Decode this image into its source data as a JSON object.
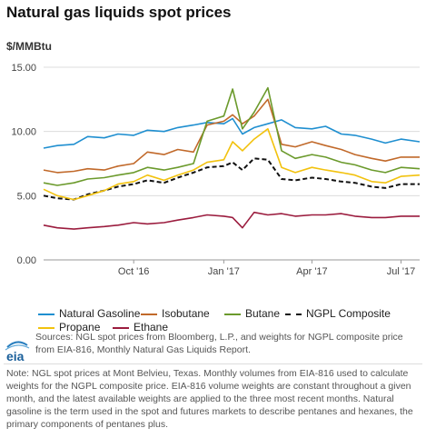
{
  "header": {
    "title": "Natural gas liquids spot prices",
    "unit_label": "$/MMBtu"
  },
  "sources_text": "Sources: NGL spot prices from Bloomberg, L.P., and weights for NGPL composite price from EIA-816, Monthly Natural Gas Liquids Report.",
  "note_text": "Note: NGL spot prices at Mont Belvieu, Texas. Monthly volumes from EIA-816 used to calculate weights for the NGPL composite price. EIA-816 volume weights are constant throughout a given month, and the latest available weights are applied to the three most recent months. Natural gasoline is the term used in the spot and futures markets to describe pentanes and hexanes, the primary components of pentanes plus.",
  "logo": {
    "text": "eia",
    "icon": "eia-logo-icon"
  },
  "chart_data": {
    "type": "line",
    "title": "Natural gas liquids spot prices",
    "ylabel": "$/MMBtu",
    "ylim": [
      0,
      15
    ],
    "yticks": [
      "0.00",
      "5.00",
      "10.00",
      "15.00"
    ],
    "xlim": [
      "2016-07-01",
      "2017-07-20"
    ],
    "xtick_labels": [
      "Oct '16",
      "Jan '17",
      "Apr '17",
      "Jul '17"
    ],
    "xtick_dates": [
      "2016-10-01",
      "2017-01-01",
      "2017-04-01",
      "2017-07-01"
    ],
    "grid": true,
    "legend_position": "bottom",
    "series": [
      {
        "name": "Natural Gasoline",
        "color": "#1f8fd0",
        "dash": false,
        "points": [
          [
            "2016-07-01",
            8.7
          ],
          [
            "2016-07-15",
            8.9
          ],
          [
            "2016-08-01",
            9.0
          ],
          [
            "2016-08-15",
            9.6
          ],
          [
            "2016-09-01",
            9.5
          ],
          [
            "2016-09-15",
            9.8
          ],
          [
            "2016-10-01",
            9.7
          ],
          [
            "2016-10-15",
            10.1
          ],
          [
            "2016-11-01",
            10.0
          ],
          [
            "2016-11-15",
            10.3
          ],
          [
            "2016-12-01",
            10.5
          ],
          [
            "2016-12-15",
            10.7
          ],
          [
            "2017-01-01",
            10.6
          ],
          [
            "2017-01-10",
            11.0
          ],
          [
            "2017-01-20",
            9.8
          ],
          [
            "2017-02-01",
            10.3
          ],
          [
            "2017-02-15",
            10.6
          ],
          [
            "2017-03-01",
            10.9
          ],
          [
            "2017-03-15",
            10.3
          ],
          [
            "2017-04-01",
            10.2
          ],
          [
            "2017-04-15",
            10.4
          ],
          [
            "2017-05-01",
            9.8
          ],
          [
            "2017-05-15",
            9.7
          ],
          [
            "2017-06-01",
            9.4
          ],
          [
            "2017-06-15",
            9.1
          ],
          [
            "2017-07-01",
            9.4
          ],
          [
            "2017-07-20",
            9.2
          ]
        ]
      },
      {
        "name": "Isobutane",
        "color": "#c1692a",
        "dash": false,
        "points": [
          [
            "2016-07-01",
            7.0
          ],
          [
            "2016-07-15",
            6.8
          ],
          [
            "2016-08-01",
            6.9
          ],
          [
            "2016-08-15",
            7.1
          ],
          [
            "2016-09-01",
            7.0
          ],
          [
            "2016-09-15",
            7.3
          ],
          [
            "2016-10-01",
            7.5
          ],
          [
            "2016-10-15",
            8.4
          ],
          [
            "2016-11-01",
            8.2
          ],
          [
            "2016-11-15",
            8.6
          ],
          [
            "2016-12-01",
            8.4
          ],
          [
            "2016-12-15",
            10.5
          ],
          [
            "2017-01-01",
            10.8
          ],
          [
            "2017-01-10",
            11.3
          ],
          [
            "2017-01-20",
            10.6
          ],
          [
            "2017-02-01",
            11.2
          ],
          [
            "2017-02-15",
            12.5
          ],
          [
            "2017-03-01",
            9.0
          ],
          [
            "2017-03-15",
            8.8
          ],
          [
            "2017-04-01",
            9.2
          ],
          [
            "2017-04-15",
            8.9
          ],
          [
            "2017-05-01",
            8.6
          ],
          [
            "2017-05-15",
            8.2
          ],
          [
            "2017-06-01",
            7.9
          ],
          [
            "2017-06-15",
            7.7
          ],
          [
            "2017-07-01",
            8.0
          ],
          [
            "2017-07-20",
            8.0
          ]
        ]
      },
      {
        "name": "Butane",
        "color": "#6b9a2c",
        "dash": false,
        "points": [
          [
            "2016-07-01",
            6.0
          ],
          [
            "2016-07-15",
            5.8
          ],
          [
            "2016-08-01",
            6.0
          ],
          [
            "2016-08-15",
            6.3
          ],
          [
            "2016-09-01",
            6.4
          ],
          [
            "2016-09-15",
            6.6
          ],
          [
            "2016-10-01",
            6.8
          ],
          [
            "2016-10-15",
            7.2
          ],
          [
            "2016-11-01",
            7.0
          ],
          [
            "2016-11-15",
            7.2
          ],
          [
            "2016-12-01",
            7.5
          ],
          [
            "2016-12-15",
            10.8
          ],
          [
            "2017-01-01",
            11.2
          ],
          [
            "2017-01-10",
            13.3
          ],
          [
            "2017-01-20",
            10.2
          ],
          [
            "2017-02-01",
            11.5
          ],
          [
            "2017-02-15",
            13.4
          ],
          [
            "2017-03-01",
            8.5
          ],
          [
            "2017-03-15",
            7.9
          ],
          [
            "2017-04-01",
            8.2
          ],
          [
            "2017-04-15",
            8.0
          ],
          [
            "2017-05-01",
            7.6
          ],
          [
            "2017-05-15",
            7.4
          ],
          [
            "2017-06-01",
            7.0
          ],
          [
            "2017-06-15",
            6.8
          ],
          [
            "2017-07-01",
            7.2
          ],
          [
            "2017-07-20",
            7.1
          ]
        ]
      },
      {
        "name": "NGPL Composite",
        "color": "#111111",
        "dash": true,
        "points": [
          [
            "2016-07-01",
            5.0
          ],
          [
            "2016-07-15",
            4.8
          ],
          [
            "2016-08-01",
            4.7
          ],
          [
            "2016-08-15",
            5.1
          ],
          [
            "2016-09-01",
            5.4
          ],
          [
            "2016-09-15",
            5.7
          ],
          [
            "2016-10-01",
            5.9
          ],
          [
            "2016-10-15",
            6.2
          ],
          [
            "2016-11-01",
            6.0
          ],
          [
            "2016-11-15",
            6.4
          ],
          [
            "2016-12-01",
            6.8
          ],
          [
            "2016-12-15",
            7.2
          ],
          [
            "2017-01-01",
            7.3
          ],
          [
            "2017-01-10",
            7.6
          ],
          [
            "2017-01-20",
            7.0
          ],
          [
            "2017-02-01",
            7.9
          ],
          [
            "2017-02-15",
            7.8
          ],
          [
            "2017-03-01",
            6.3
          ],
          [
            "2017-03-15",
            6.2
          ],
          [
            "2017-04-01",
            6.4
          ],
          [
            "2017-04-15",
            6.3
          ],
          [
            "2017-05-01",
            6.1
          ],
          [
            "2017-05-15",
            6.0
          ],
          [
            "2017-06-01",
            5.7
          ],
          [
            "2017-06-15",
            5.6
          ],
          [
            "2017-07-01",
            5.9
          ],
          [
            "2017-07-20",
            5.9
          ]
        ]
      },
      {
        "name": "Propane",
        "color": "#f2c20e",
        "dash": false,
        "points": [
          [
            "2016-07-01",
            5.5
          ],
          [
            "2016-07-15",
            5.0
          ],
          [
            "2016-08-01",
            4.7
          ],
          [
            "2016-08-15",
            5.0
          ],
          [
            "2016-09-01",
            5.4
          ],
          [
            "2016-09-15",
            5.9
          ],
          [
            "2016-10-01",
            6.1
          ],
          [
            "2016-10-15",
            6.6
          ],
          [
            "2016-11-01",
            6.2
          ],
          [
            "2016-11-15",
            6.6
          ],
          [
            "2016-12-01",
            7.0
          ],
          [
            "2016-12-15",
            7.6
          ],
          [
            "2017-01-01",
            7.8
          ],
          [
            "2017-01-10",
            9.2
          ],
          [
            "2017-01-20",
            8.5
          ],
          [
            "2017-02-01",
            9.4
          ],
          [
            "2017-02-15",
            10.2
          ],
          [
            "2017-03-01",
            7.2
          ],
          [
            "2017-03-15",
            6.8
          ],
          [
            "2017-04-01",
            7.2
          ],
          [
            "2017-04-15",
            7.0
          ],
          [
            "2017-05-01",
            6.8
          ],
          [
            "2017-05-15",
            6.6
          ],
          [
            "2017-06-01",
            6.1
          ],
          [
            "2017-06-15",
            6.0
          ],
          [
            "2017-07-01",
            6.5
          ],
          [
            "2017-07-20",
            6.6
          ]
        ]
      },
      {
        "name": "Ethane",
        "color": "#9b1c3e",
        "dash": false,
        "points": [
          [
            "2016-07-01",
            2.7
          ],
          [
            "2016-07-15",
            2.5
          ],
          [
            "2016-08-01",
            2.4
          ],
          [
            "2016-08-15",
            2.5
          ],
          [
            "2016-09-01",
            2.6
          ],
          [
            "2016-09-15",
            2.7
          ],
          [
            "2016-10-01",
            2.9
          ],
          [
            "2016-10-15",
            2.8
          ],
          [
            "2016-11-01",
            2.9
          ],
          [
            "2016-11-15",
            3.1
          ],
          [
            "2016-12-01",
            3.3
          ],
          [
            "2016-12-15",
            3.5
          ],
          [
            "2017-01-01",
            3.4
          ],
          [
            "2017-01-10",
            3.3
          ],
          [
            "2017-01-20",
            2.5
          ],
          [
            "2017-02-01",
            3.7
          ],
          [
            "2017-02-15",
            3.5
          ],
          [
            "2017-03-01",
            3.6
          ],
          [
            "2017-03-15",
            3.4
          ],
          [
            "2017-04-01",
            3.5
          ],
          [
            "2017-04-15",
            3.5
          ],
          [
            "2017-05-01",
            3.6
          ],
          [
            "2017-05-15",
            3.4
          ],
          [
            "2017-06-01",
            3.3
          ],
          [
            "2017-06-15",
            3.3
          ],
          [
            "2017-07-01",
            3.4
          ],
          [
            "2017-07-20",
            3.4
          ]
        ]
      }
    ]
  }
}
